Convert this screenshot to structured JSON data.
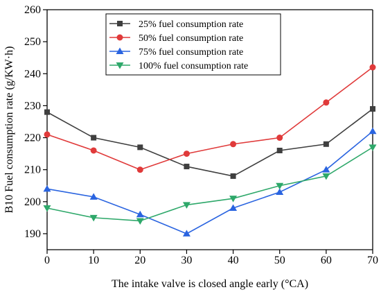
{
  "chart_data": {
    "type": "line",
    "title": "",
    "xlabel": "The intake valve is closed angle early (°CA)",
    "ylabel": "B10 Fuel consumption rate (g/KW·h)",
    "xlim": [
      0,
      70
    ],
    "ylim": [
      185,
      260
    ],
    "xticks": [
      0,
      10,
      20,
      30,
      40,
      50,
      60,
      70
    ],
    "yticks": [
      190,
      200,
      210,
      220,
      230,
      240,
      250,
      260
    ],
    "grid": false,
    "legend_position": "top-right",
    "x": [
      0,
      10,
      20,
      30,
      40,
      50,
      60,
      70
    ],
    "series": [
      {
        "name": "25% fuel consumption rate",
        "color": "#3f3f3f",
        "marker": "square",
        "values": [
          228,
          220,
          217,
          211,
          208,
          216,
          218,
          229
        ]
      },
      {
        "name": "50% fuel consumption rate",
        "color": "#e03a3a",
        "marker": "circle",
        "values": [
          221,
          216,
          210,
          215,
          218,
          220,
          231,
          242
        ]
      },
      {
        "name": "75% fuel consumption rate",
        "color": "#2a64e0",
        "marker": "triangle-up",
        "values": [
          204,
          201.5,
          196,
          190,
          198,
          203,
          210,
          222
        ]
      },
      {
        "name": "100% fuel consumption rate",
        "color": "#2ea86a",
        "marker": "triangle-down",
        "values": [
          198,
          195,
          194,
          199,
          201,
          205,
          208,
          217
        ]
      }
    ]
  }
}
